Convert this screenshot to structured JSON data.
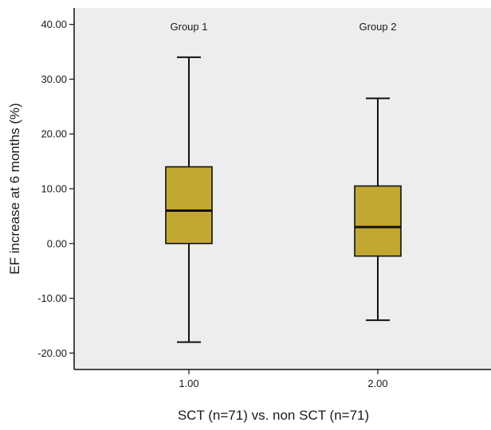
{
  "chart_data": {
    "type": "box",
    "xlabel": "SCT (n=71) vs. non SCT (n=71)",
    "ylabel": "EF increase at 6 months (%)",
    "ylim": [
      -23,
      43
    ],
    "y_ticks": [
      "40.00",
      "30.00",
      "20.00",
      "10.00",
      "0.00",
      "-10.00",
      "-20.00"
    ],
    "y_tick_values": [
      40,
      30,
      20,
      10,
      0,
      -10,
      -20
    ],
    "grid": false,
    "colors": {
      "plot_bg": "#ededed",
      "box_fill": "#c3a733",
      "line": "#111111"
    },
    "groups": [
      {
        "tick": "1.00",
        "label": "Group 1",
        "min": -18,
        "q1": 0,
        "median": 6,
        "q3": 14,
        "max": 34
      },
      {
        "tick": "2.00",
        "label": "Group 2",
        "min": -14,
        "q1": -2.3,
        "median": 3,
        "q3": 10.5,
        "max": 26.5
      }
    ]
  }
}
